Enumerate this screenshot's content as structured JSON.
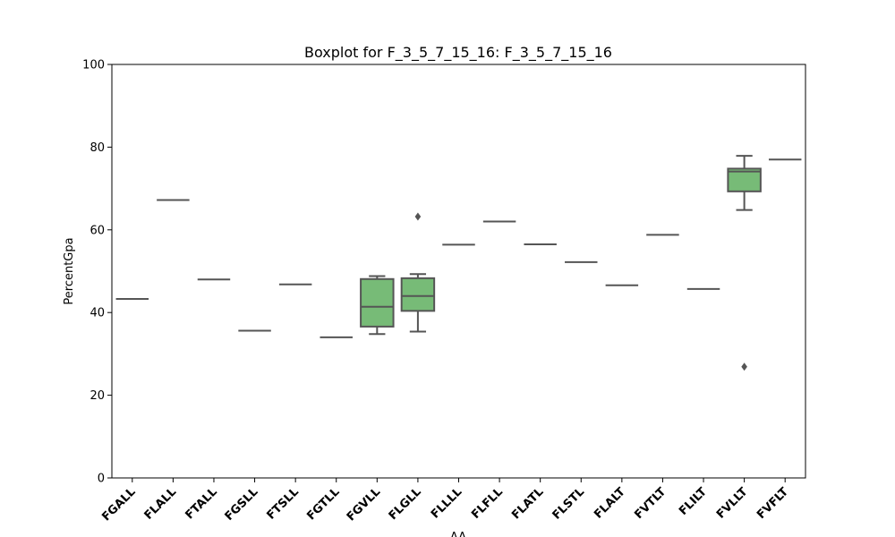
{
  "chart_data": {
    "type": "boxplot",
    "title": "Boxplot for F_3_5_7_15_16: F_3_5_7_15_16",
    "xlabel": "AA",
    "ylabel": "PercentGpa",
    "ylim": [
      0,
      100
    ],
    "yticks": [
      0,
      20,
      40,
      60,
      80,
      100
    ],
    "grid": false,
    "box_color": "#77bb77",
    "line_color": "#555555",
    "categories": [
      "FGALL",
      "FLALL",
      "FTALL",
      "FGSLL",
      "FTSLL",
      "FGTLL",
      "FGVLL",
      "FLGLL",
      "FLLLL",
      "FLFLL",
      "FLATL",
      "FLSTL",
      "FLALT",
      "FVTLT",
      "FLILT",
      "FVLLT",
      "FVFLT"
    ],
    "boxes": [
      {
        "category": "FGALL",
        "min": 43.3,
        "q1": 43.3,
        "median": 43.3,
        "q3": 43.3,
        "max": 43.3,
        "outliers": []
      },
      {
        "category": "FLALL",
        "min": 67.2,
        "q1": 67.2,
        "median": 67.2,
        "q3": 67.2,
        "max": 67.2,
        "outliers": []
      },
      {
        "category": "FTALL",
        "min": 48.0,
        "q1": 48.0,
        "median": 48.0,
        "q3": 48.0,
        "max": 48.0,
        "outliers": []
      },
      {
        "category": "FGSLL",
        "min": 35.6,
        "q1": 35.6,
        "median": 35.6,
        "q3": 35.6,
        "max": 35.6,
        "outliers": []
      },
      {
        "category": "FTSLL",
        "min": 46.8,
        "q1": 46.8,
        "median": 46.8,
        "q3": 46.8,
        "max": 46.8,
        "outliers": []
      },
      {
        "category": "FGTLL",
        "min": 34.0,
        "q1": 34.0,
        "median": 34.0,
        "q3": 34.0,
        "max": 34.0,
        "outliers": []
      },
      {
        "category": "FGVLL",
        "min": 34.8,
        "q1": 36.6,
        "median": 41.4,
        "q3": 48.1,
        "max": 48.8,
        "outliers": []
      },
      {
        "category": "FLGLL",
        "min": 35.4,
        "q1": 40.4,
        "median": 44.0,
        "q3": 48.3,
        "max": 49.3,
        "outliers": [
          63.2
        ]
      },
      {
        "category": "FLLLL",
        "min": 56.4,
        "q1": 56.4,
        "median": 56.4,
        "q3": 56.4,
        "max": 56.4,
        "outliers": []
      },
      {
        "category": "FLFLL",
        "min": 62.0,
        "q1": 62.0,
        "median": 62.0,
        "q3": 62.0,
        "max": 62.0,
        "outliers": []
      },
      {
        "category": "FLATL",
        "min": 56.5,
        "q1": 56.5,
        "median": 56.5,
        "q3": 56.5,
        "max": 56.5,
        "outliers": []
      },
      {
        "category": "FLSTL",
        "min": 52.2,
        "q1": 52.2,
        "median": 52.2,
        "q3": 52.2,
        "max": 52.2,
        "outliers": []
      },
      {
        "category": "FLALT",
        "min": 46.6,
        "q1": 46.6,
        "median": 46.6,
        "q3": 46.6,
        "max": 46.6,
        "outliers": []
      },
      {
        "category": "FVTLT",
        "min": 58.8,
        "q1": 58.8,
        "median": 58.8,
        "q3": 58.8,
        "max": 58.8,
        "outliers": []
      },
      {
        "category": "FLILT",
        "min": 45.7,
        "q1": 45.7,
        "median": 45.7,
        "q3": 45.7,
        "max": 45.7,
        "outliers": []
      },
      {
        "category": "FVLLT",
        "min": 64.8,
        "q1": 69.3,
        "median": 74.1,
        "q3": 74.8,
        "max": 77.9,
        "outliers": [
          26.9
        ]
      },
      {
        "category": "FVFLT",
        "min": 77.0,
        "q1": 77.0,
        "median": 77.0,
        "q3": 77.0,
        "max": 77.0,
        "outliers": []
      }
    ]
  }
}
